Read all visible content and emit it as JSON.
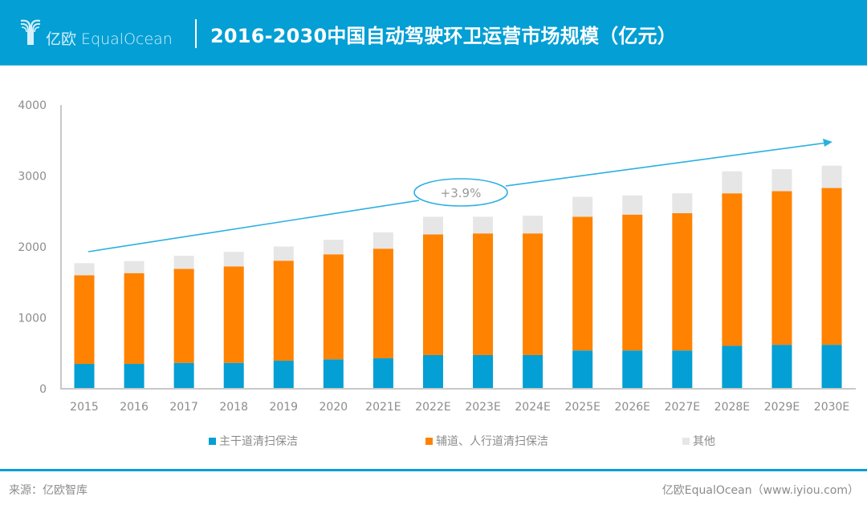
{
  "header": {
    "logo_text": "亿欧 EqualOcean",
    "title": "2016-2030中国自动驾驶环卫运营市场规模（亿元）"
  },
  "colors": {
    "brand": "#039fd5",
    "series_main": "#039fd5",
    "series_aux": "#ff8200",
    "series_other": "#e6e6e6",
    "axis": "#c8c8c8",
    "tick_text": "#8c8c8c",
    "trend": "#2ab0e0"
  },
  "chart_data": {
    "type": "bar",
    "stacked": true,
    "title": "2016-2030中国自动驾驶环卫运营市场规模（亿元）",
    "xlabel": "",
    "ylabel": "",
    "ylim": [
      0,
      4000
    ],
    "yticks": [
      0,
      1000,
      2000,
      3000,
      4000
    ],
    "grid": false,
    "legend_position": "bottom",
    "categories": [
      "2015",
      "2016",
      "2017",
      "2018",
      "2019",
      "2020",
      "2021E",
      "2022E",
      "2023E",
      "2024E",
      "2025E",
      "2026E",
      "2027E",
      "2028E",
      "2029E",
      "2030E"
    ],
    "series": [
      {
        "name": "主干道清扫保洁",
        "color": "#039fd5",
        "values": [
          350,
          350,
          365,
          365,
          395,
          415,
          430,
          475,
          475,
          475,
          540,
          540,
          540,
          605,
          620,
          620
        ]
      },
      {
        "name": "辅道、人行道清扫保洁",
        "color": "#ff8200",
        "values": [
          1250,
          1280,
          1325,
          1360,
          1410,
          1480,
          1545,
          1700,
          1715,
          1715,
          1885,
          1915,
          1935,
          2150,
          2165,
          2210
        ]
      },
      {
        "name": "其他",
        "color": "#e6e6e6",
        "values": [
          170,
          170,
          185,
          205,
          200,
          205,
          230,
          250,
          235,
          250,
          280,
          270,
          280,
          310,
          310,
          315
        ]
      }
    ],
    "totals": [
      1770,
      1800,
      1875,
      1930,
      2005,
      2100,
      2205,
      2425,
      2425,
      2440,
      2705,
      2725,
      2755,
      3065,
      3095,
      3145
    ],
    "annotations": [
      {
        "type": "trend-arrow",
        "from_category": "2015",
        "to_category": "2030E",
        "label": "+3.9%"
      }
    ]
  },
  "footer": {
    "source": "来源：亿欧智库",
    "credit": "亿欧EqualOcean（www.iyiou.com）"
  }
}
